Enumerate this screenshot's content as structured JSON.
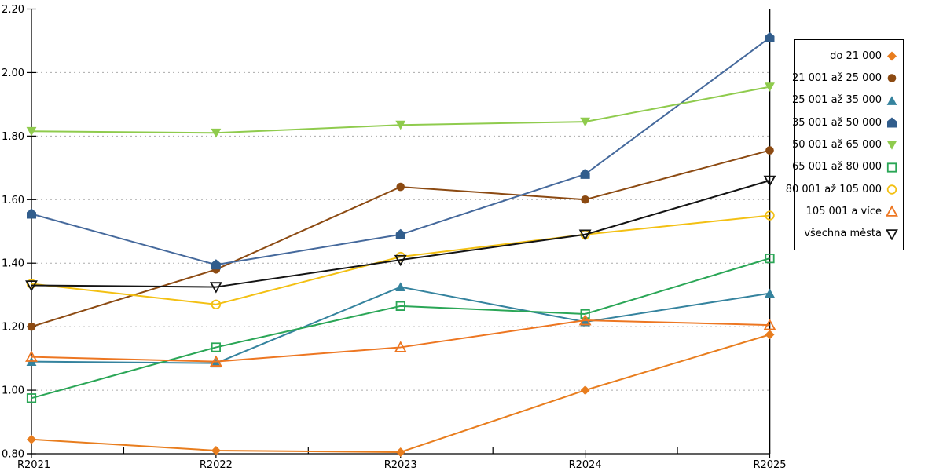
{
  "chart_data": {
    "type": "line",
    "title": "",
    "xlabel": "",
    "ylabel": "",
    "x_categories": [
      "R2021",
      "R2022",
      "R2023",
      "R2024",
      "R2025"
    ],
    "y_tick_labels": [
      "0.80",
      "1.00",
      "1.20",
      "1.40",
      "1.60",
      "1.80",
      "2.00",
      "2.20"
    ],
    "ylim": [
      0.8,
      2.2
    ],
    "y_step": 0.2,
    "grid": "horizontal-dotted",
    "legend_position": "right",
    "series": [
      {
        "name": "do 21 000",
        "marker": "diamond",
        "fill": "solid",
        "color": "#E87D1E",
        "values": [
          0.845,
          0.81,
          0.805,
          1.0,
          1.175
        ]
      },
      {
        "name": "21 001 až 25 000",
        "marker": "circle",
        "fill": "solid",
        "color": "#8C4A12",
        "values": [
          1.2,
          1.38,
          1.64,
          1.6,
          1.755
        ]
      },
      {
        "name": "25 001 až 35 000",
        "marker": "triangle-up",
        "fill": "solid",
        "color": "#35839E",
        "values": [
          1.09,
          1.085,
          1.325,
          1.215,
          1.305
        ]
      },
      {
        "name": "35 001 až 50 000",
        "marker": "pentagon",
        "fill": "solid",
        "color": "#315D8C",
        "line_color": "#45699C",
        "values": [
          1.555,
          1.395,
          1.49,
          1.68,
          2.11
        ]
      },
      {
        "name": "50 001 až 65 000",
        "marker": "triangle-down",
        "fill": "solid",
        "color": "#8FCB4D",
        "values": [
          1.815,
          1.81,
          1.835,
          1.845,
          1.955
        ]
      },
      {
        "name": "65 001 až 80 000",
        "marker": "square",
        "fill": "hollow",
        "color": "#2AA656",
        "values": [
          0.975,
          1.135,
          1.265,
          1.24,
          1.415
        ]
      },
      {
        "name": "80 001 až 105 000",
        "marker": "circle",
        "fill": "hollow",
        "color": "#F3C013",
        "values": [
          1.335,
          1.27,
          1.42,
          1.49,
          1.55
        ]
      },
      {
        "name": "105 001 a více",
        "marker": "triangle-up",
        "fill": "hollow",
        "color": "#ED7621",
        "values": [
          1.105,
          1.09,
          1.135,
          1.22,
          1.205
        ]
      },
      {
        "name": "všechna města",
        "marker": "triangle-down",
        "fill": "hollow",
        "color": "#141414",
        "values": [
          1.33,
          1.325,
          1.41,
          1.49,
          1.66
        ]
      }
    ],
    "colors": {
      "axis": "#000000",
      "gridline": "#ABABAB",
      "background": "#FFFFFF",
      "legend_border": "#000000"
    }
  }
}
